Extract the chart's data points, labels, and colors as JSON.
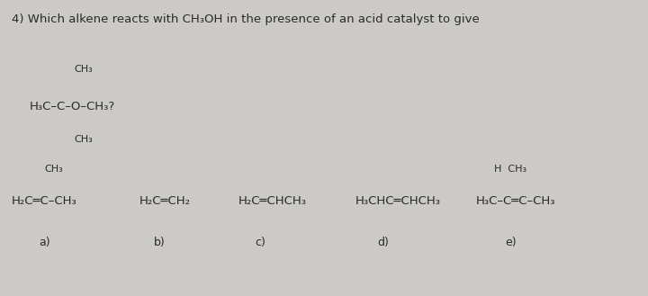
{
  "bg_color": "#cccac6",
  "text_color": "#2a2a2a",
  "q_number": "4)",
  "q_text": " Which alkene reacts with CH₃OH in the presence of an acid catalyst to give",
  "prod_ch3_top": "CH₃",
  "prod_main": "H₃C–C–O–CH₃?",
  "prod_ch3_bot": "CH₃",
  "a_ch3": "CH₃",
  "a_main": "H₂C═C–CH₃",
  "a_label": "a)",
  "b_main": "H₂C═CH₂",
  "b_label": "b)",
  "c_main": "H₂C═CHCH₃",
  "c_label": "c)",
  "d_main": "H₃CHC═CHCH₃",
  "d_label": "d)",
  "e_top": "H  CH₃",
  "e_main": "H₃C–C═C–CH₃",
  "e_label": "e)",
  "fs_main": 9.5,
  "fs_small": 8.0,
  "fs_label": 9.0
}
